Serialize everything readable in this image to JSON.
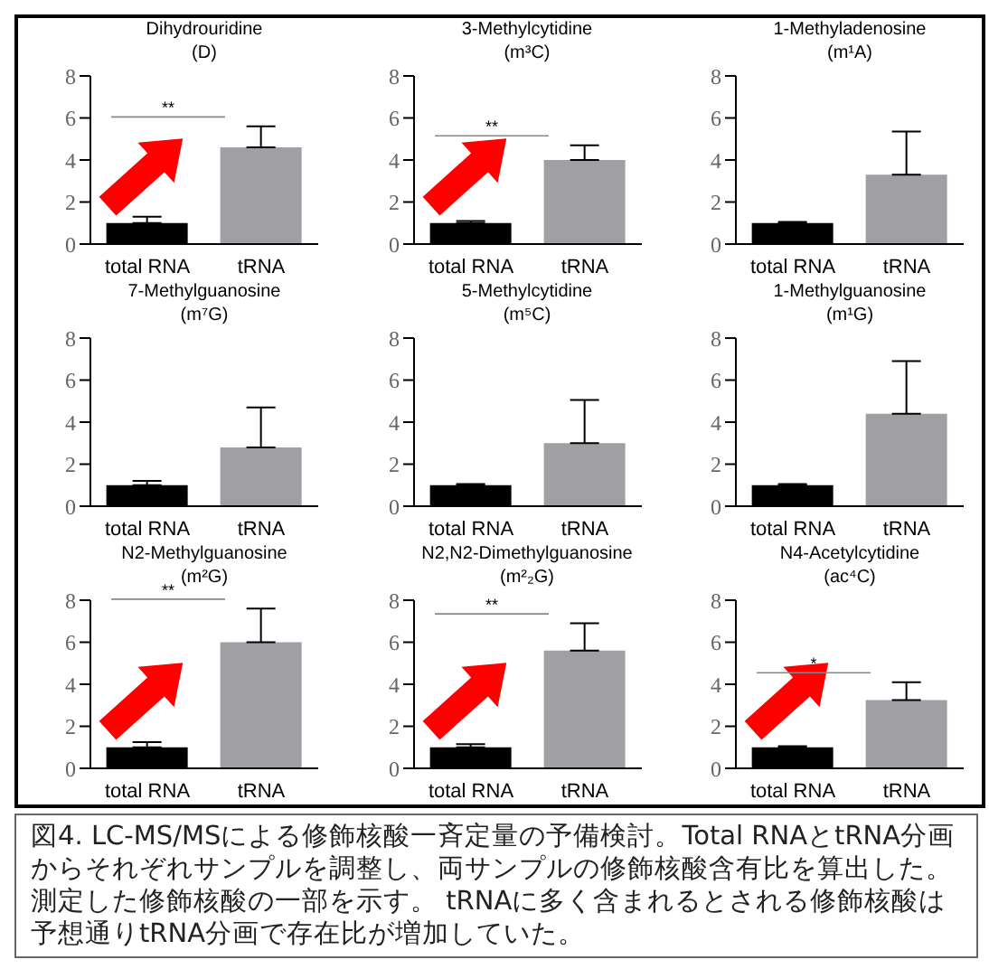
{
  "chart_data": [
    {
      "type": "bar",
      "title": "Dihydrouridine",
      "subtitle": "(D)",
      "categories": [
        "total RNA",
        "tRNA"
      ],
      "values": [
        1.0,
        4.6
      ],
      "errors": [
        [
          1.0,
          1.3
        ],
        [
          4.6,
          5.6
        ]
      ],
      "colors": [
        "#000000",
        "#a0a0a4"
      ],
      "ylim": [
        0,
        8
      ],
      "yticks": [
        0,
        2,
        4,
        6,
        8
      ],
      "annotations": [
        "**"
      ]
    },
    {
      "type": "bar",
      "title": "3-Methylcytidine",
      "subtitle": "(m³C)",
      "categories": [
        "total RNA",
        "tRNA"
      ],
      "values": [
        1.0,
        4.0
      ],
      "errors": [
        [
          1.0,
          1.1
        ],
        [
          4.0,
          4.7
        ]
      ],
      "colors": [
        "#000000",
        "#a0a0a4"
      ],
      "ylim": [
        0,
        8
      ],
      "yticks": [
        0,
        2,
        4,
        6,
        8
      ],
      "annotations": [
        "**"
      ]
    },
    {
      "type": "bar",
      "title": "1-Methyladenosine",
      "subtitle": "(m¹A)",
      "categories": [
        "total RNA",
        "tRNA"
      ],
      "values": [
        1.0,
        3.3
      ],
      "errors": [
        [
          1.0,
          1.05
        ],
        [
          3.3,
          5.35
        ]
      ],
      "colors": [
        "#000000",
        "#a0a0a4"
      ],
      "ylim": [
        0,
        8
      ],
      "yticks": [
        0,
        2,
        4,
        6,
        8
      ]
    },
    {
      "type": "bar",
      "title": "7-Methylguanosine",
      "subtitle": "(m⁷G)",
      "categories": [
        "total RNA",
        "tRNA"
      ],
      "values": [
        1.0,
        2.8
      ],
      "errors": [
        [
          1.0,
          1.2
        ],
        [
          2.8,
          4.7
        ]
      ],
      "colors": [
        "#000000",
        "#a0a0a4"
      ],
      "ylim": [
        0,
        8
      ],
      "yticks": [
        0,
        2,
        4,
        6,
        8
      ]
    },
    {
      "type": "bar",
      "title": "5-Methylcytidine",
      "subtitle": "(m⁵C)",
      "categories": [
        "total RNA",
        "tRNA"
      ],
      "values": [
        1.0,
        3.0
      ],
      "errors": [
        [
          1.0,
          1.05
        ],
        [
          3.0,
          5.05
        ]
      ],
      "colors": [
        "#000000",
        "#a0a0a4"
      ],
      "ylim": [
        0,
        8
      ],
      "yticks": [
        0,
        2,
        4,
        6,
        8
      ]
    },
    {
      "type": "bar",
      "title": "1-Methylguanosine",
      "subtitle": "(m¹G)",
      "categories": [
        "total RNA",
        "tRNA"
      ],
      "values": [
        1.0,
        4.4
      ],
      "errors": [
        [
          1.0,
          1.05
        ],
        [
          4.4,
          6.9
        ]
      ],
      "colors": [
        "#000000",
        "#a0a0a4"
      ],
      "ylim": [
        0,
        8
      ],
      "yticks": [
        0,
        2,
        4,
        6,
        8
      ]
    },
    {
      "type": "bar",
      "title": "N2-Methylguanosine",
      "subtitle": "(m²G)",
      "categories": [
        "total RNA",
        "tRNA"
      ],
      "values": [
        1.0,
        6.0
      ],
      "errors": [
        [
          1.0,
          1.25
        ],
        [
          6.0,
          7.6
        ]
      ],
      "colors": [
        "#000000",
        "#a0a0a4"
      ],
      "ylim": [
        0,
        8
      ],
      "yticks": [
        0,
        2,
        4,
        6,
        8
      ],
      "annotations": [
        "**"
      ]
    },
    {
      "type": "bar",
      "title": "N2,N2-Dimethylguanosine",
      "subtitle": "(m²₂G)",
      "categories": [
        "total RNA",
        "tRNA"
      ],
      "values": [
        1.0,
        5.6
      ],
      "errors": [
        [
          1.0,
          1.15
        ],
        [
          5.6,
          6.9
        ]
      ],
      "colors": [
        "#000000",
        "#a0a0a4"
      ],
      "ylim": [
        0,
        8
      ],
      "yticks": [
        0,
        2,
        4,
        6,
        8
      ],
      "annotations": [
        "**"
      ]
    },
    {
      "type": "bar",
      "title": "N4-Acetylcytidine",
      "subtitle": "(ac⁴C)",
      "categories": [
        "total RNA",
        "tRNA"
      ],
      "values": [
        1.0,
        3.25
      ],
      "errors": [
        [
          1.0,
          1.05
        ],
        [
          3.25,
          4.1
        ]
      ],
      "colors": [
        "#000000",
        "#a0a0a4"
      ],
      "ylim": [
        0,
        8
      ],
      "yticks": [
        0,
        2,
        4,
        6,
        8
      ],
      "annotations": [
        "*"
      ]
    },
    {
      "type": "other",
      "annotations": [
        "図4. LC-MS/MSによる修飾核酸一斉定量の予備検討。Total RNAとtRNA分画からそれぞれサンプルを調整し、両サンプルの修飾核酸含有比を算出した。測定した修飾核酸の一部を示す。 tRNAに多く含まれるとされる修飾核酸は予想通りtRNA分画で存在比が増加していた。"
      ]
    }
  ]
}
